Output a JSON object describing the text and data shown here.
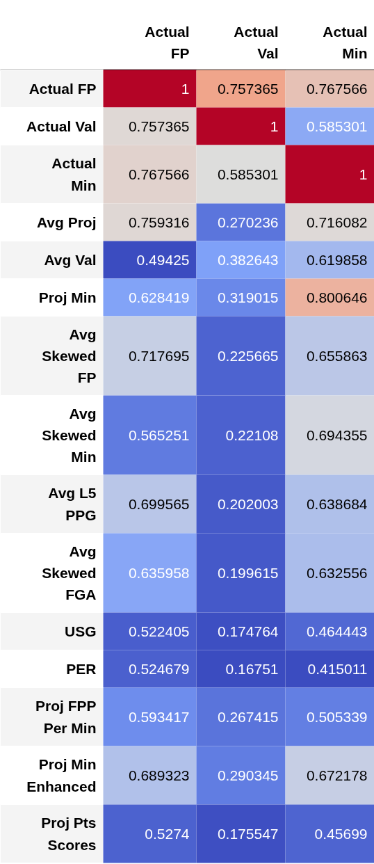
{
  "chart_data": {
    "type": "heatmap",
    "data_labels": true,
    "categories": [
      "Actual\nFP",
      "Actual\nVal",
      "Actual\nMin"
    ],
    "y_categories": [
      "Actual FP",
      "Actual Val",
      "Actual\nMin",
      "Avg Proj",
      "Avg Val",
      "Proj Min",
      "Avg\nSkewed\nFP",
      "Avg\nSkewed\nMin",
      "Avg L5\nPPG",
      "Avg\nSkewed\nFGA",
      "USG",
      "PER",
      "Proj FPP\nPer Min",
      "Proj Min\nEnhanced",
      "Proj Pts\nScores"
    ],
    "cells": [
      [
        1,
        0.757365,
        0.767566
      ],
      [
        0.757365,
        1,
        0.585301
      ],
      [
        0.767566,
        0.585301,
        1
      ],
      [
        0.759316,
        0.270236,
        0.716082
      ],
      [
        0.49425,
        0.382643,
        0.619858
      ],
      [
        0.628419,
        0.319015,
        0.800646
      ],
      [
        0.717695,
        0.225665,
        0.655863
      ],
      [
        0.565251,
        0.22108,
        0.694355
      ],
      [
        0.699565,
        0.202003,
        0.638684
      ],
      [
        0.635958,
        0.199615,
        0.632556
      ],
      [
        0.522405,
        0.174764,
        0.464443
      ],
      [
        0.524679,
        0.16751,
        0.415011
      ],
      [
        0.593417,
        0.267415,
        0.505339
      ],
      [
        0.689323,
        0.290345,
        0.672178
      ],
      [
        0.5274,
        0.175547,
        0.45699
      ]
    ]
  }
}
